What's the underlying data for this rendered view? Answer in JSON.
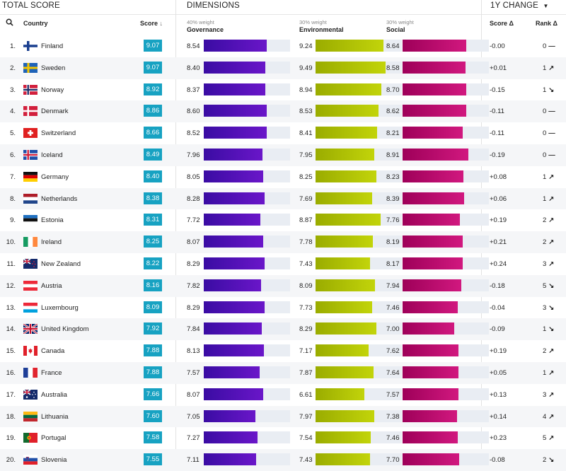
{
  "sections": {
    "total": "TOTAL SCORE",
    "dimensions": "DIMENSIONS",
    "change": "1Y CHANGE"
  },
  "headers": {
    "country": "Country",
    "score": "Score",
    "governance": {
      "weight": "40% weight",
      "name": "Governance"
    },
    "environmental": {
      "weight": "30% weight",
      "name": "Environmental"
    },
    "social": {
      "weight": "30% weight",
      "name": "Social"
    },
    "score_delta": "Score Δ",
    "rank_delta": "Rank Δ"
  },
  "colors": {
    "score_badge": "#17a2c2",
    "governance": "#5010bf",
    "environmental": "#b2c406",
    "social": "#c0106e"
  },
  "rows": [
    {
      "rank": "1.",
      "country": "Finland",
      "flag": "fi",
      "score": "9.07",
      "gov": "8.54",
      "env": "9.24",
      "soc": "8.64",
      "chg": "-0.00",
      "rchg": "0",
      "dir": "flat"
    },
    {
      "rank": "2.",
      "country": "Sweden",
      "flag": "se",
      "score": "9.07",
      "gov": "8.40",
      "env": "9.49",
      "soc": "8.58",
      "chg": "+0.01",
      "rchg": "1",
      "dir": "up"
    },
    {
      "rank": "3.",
      "country": "Norway",
      "flag": "no",
      "score": "8.92",
      "gov": "8.37",
      "env": "8.94",
      "soc": "8.70",
      "chg": "-0.15",
      "rchg": "1",
      "dir": "down"
    },
    {
      "rank": "4.",
      "country": "Denmark",
      "flag": "dk",
      "score": "8.86",
      "gov": "8.60",
      "env": "8.53",
      "soc": "8.62",
      "chg": "-0.11",
      "rchg": "0",
      "dir": "flat"
    },
    {
      "rank": "5.",
      "country": "Switzerland",
      "flag": "ch",
      "score": "8.66",
      "gov": "8.52",
      "env": "8.41",
      "soc": "8.21",
      "chg": "-0.11",
      "rchg": "0",
      "dir": "flat"
    },
    {
      "rank": "6.",
      "country": "Iceland",
      "flag": "is",
      "score": "8.49",
      "gov": "7.96",
      "env": "7.95",
      "soc": "8.91",
      "chg": "-0.19",
      "rchg": "0",
      "dir": "flat"
    },
    {
      "rank": "7.",
      "country": "Germany",
      "flag": "de",
      "score": "8.40",
      "gov": "8.05",
      "env": "8.25",
      "soc": "8.23",
      "chg": "+0.08",
      "rchg": "1",
      "dir": "up"
    },
    {
      "rank": "8.",
      "country": "Netherlands",
      "flag": "nl",
      "score": "8.38",
      "gov": "8.28",
      "env": "7.69",
      "soc": "8.39",
      "chg": "+0.06",
      "rchg": "1",
      "dir": "up"
    },
    {
      "rank": "9.",
      "country": "Estonia",
      "flag": "ee",
      "score": "8.31",
      "gov": "7.72",
      "env": "8.87",
      "soc": "7.76",
      "chg": "+0.19",
      "rchg": "2",
      "dir": "up"
    },
    {
      "rank": "10.",
      "country": "Ireland",
      "flag": "ie",
      "score": "8.25",
      "gov": "8.07",
      "env": "7.78",
      "soc": "8.19",
      "chg": "+0.21",
      "rchg": "2",
      "dir": "up"
    },
    {
      "rank": "11.",
      "country": "New Zealand",
      "flag": "nz",
      "score": "8.22",
      "gov": "8.29",
      "env": "7.43",
      "soc": "8.17",
      "chg": "+0.24",
      "rchg": "3",
      "dir": "up"
    },
    {
      "rank": "12.",
      "country": "Austria",
      "flag": "at",
      "score": "8.16",
      "gov": "7.82",
      "env": "8.09",
      "soc": "7.94",
      "chg": "-0.18",
      "rchg": "5",
      "dir": "down"
    },
    {
      "rank": "13.",
      "country": "Luxembourg",
      "flag": "lu",
      "score": "8.09",
      "gov": "8.29",
      "env": "7.73",
      "soc": "7.46",
      "chg": "-0.04",
      "rchg": "3",
      "dir": "down"
    },
    {
      "rank": "14.",
      "country": "United Kingdom",
      "flag": "gb",
      "score": "7.92",
      "gov": "7.84",
      "env": "8.29",
      "soc": "7.00",
      "chg": "-0.09",
      "rchg": "1",
      "dir": "down"
    },
    {
      "rank": "15.",
      "country": "Canada",
      "flag": "ca",
      "score": "7.88",
      "gov": "8.13",
      "env": "7.17",
      "soc": "7.62",
      "chg": "+0.19",
      "rchg": "2",
      "dir": "up"
    },
    {
      "rank": "16.",
      "country": "France",
      "flag": "fr",
      "score": "7.88",
      "gov": "7.57",
      "env": "7.87",
      "soc": "7.64",
      "chg": "+0.05",
      "rchg": "1",
      "dir": "up"
    },
    {
      "rank": "17.",
      "country": "Australia",
      "flag": "au",
      "score": "7.66",
      "gov": "8.07",
      "env": "6.61",
      "soc": "7.57",
      "chg": "+0.13",
      "rchg": "3",
      "dir": "up"
    },
    {
      "rank": "18.",
      "country": "Lithuania",
      "flag": "lt",
      "score": "7.60",
      "gov": "7.05",
      "env": "7.97",
      "soc": "7.38",
      "chg": "+0.14",
      "rchg": "4",
      "dir": "up"
    },
    {
      "rank": "19.",
      "country": "Portugal",
      "flag": "pt",
      "score": "7.58",
      "gov": "7.27",
      "env": "7.54",
      "soc": "7.46",
      "chg": "+0.23",
      "rchg": "5",
      "dir": "up"
    },
    {
      "rank": "20.",
      "country": "Slovenia",
      "flag": "si",
      "score": "7.55",
      "gov": "7.11",
      "env": "7.43",
      "soc": "7.70",
      "chg": "-0.08",
      "rchg": "2",
      "dir": "down"
    }
  ]
}
